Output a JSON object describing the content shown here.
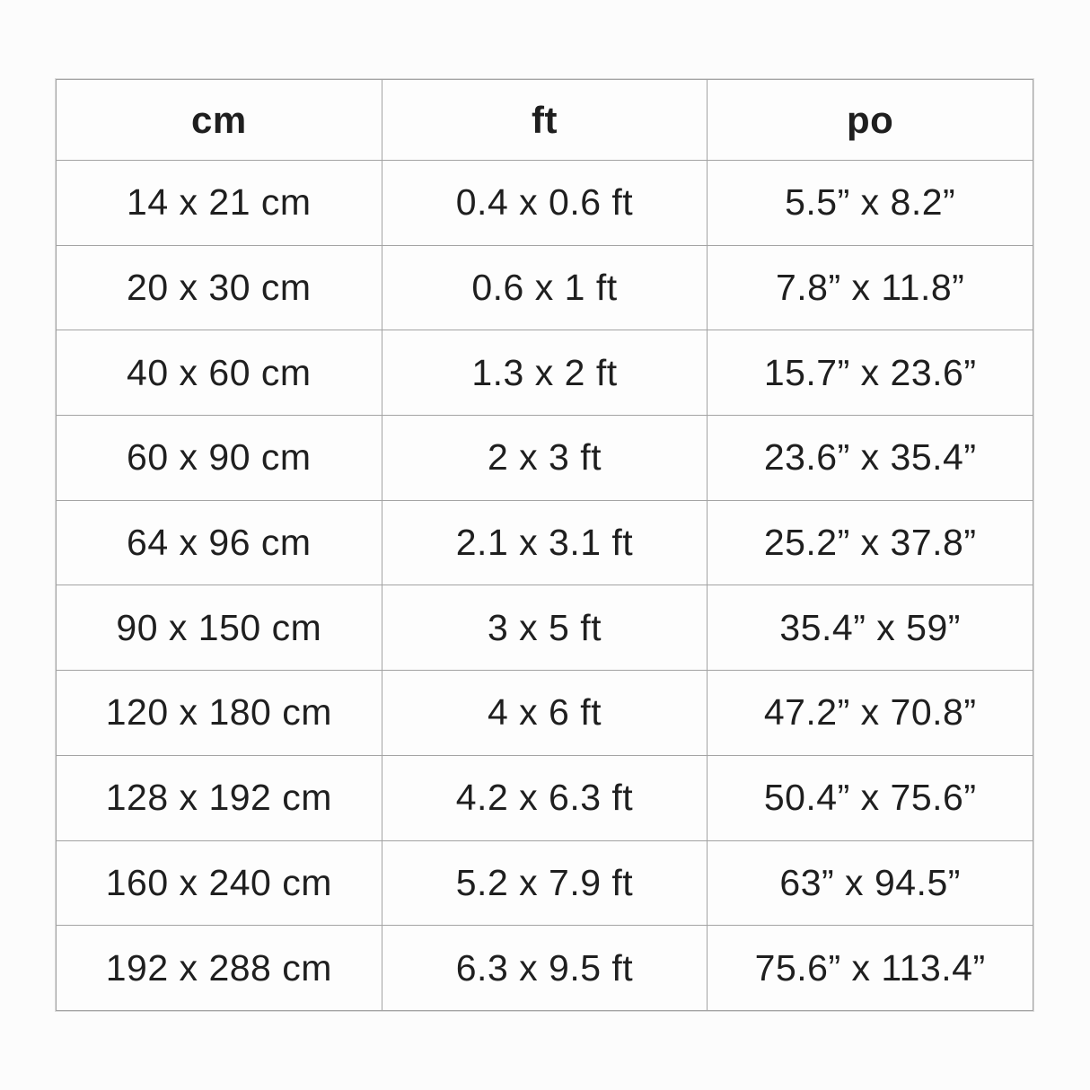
{
  "chart_data": {
    "type": "table",
    "title": "",
    "columns": [
      "cm",
      "ft",
      "po"
    ],
    "rows": [
      [
        "14 x 21 cm",
        "0.4 x 0.6 ft",
        "5.5” x 8.2”"
      ],
      [
        "20 x 30 cm",
        "0.6 x 1 ft",
        "7.8” x 11.8”"
      ],
      [
        "40 x 60 cm",
        "1.3 x 2 ft",
        "15.7” x 23.6”"
      ],
      [
        "60 x 90 cm",
        "2 x 3 ft",
        "23.6” x 35.4”"
      ],
      [
        "64 x 96 cm",
        "2.1 x 3.1 ft",
        "25.2” x 37.8”"
      ],
      [
        "90 x 150 cm",
        "3 x 5 ft",
        "35.4” x 59”"
      ],
      [
        "120 x 180 cm",
        "4 x 6 ft",
        "47.2” x 70.8”"
      ],
      [
        "128 x 192 cm",
        "4.2 x 6.3 ft",
        "50.4” x 75.6”"
      ],
      [
        "160 x 240 cm",
        "5.2 x 7.9 ft",
        "63” x 94.5”"
      ],
      [
        "192 x 288 cm",
        "6.3 x 9.5 ft",
        "75.6” x 113.4”"
      ]
    ],
    "layout": {
      "grid": true,
      "header_row_bold": true,
      "column_count": 3,
      "row_count": 10
    }
  },
  "colors": {
    "border": "#a3a3a3",
    "text": "#1f1f1f",
    "background": "#fcfcfc",
    "cell_background": "#fdfdfd"
  }
}
